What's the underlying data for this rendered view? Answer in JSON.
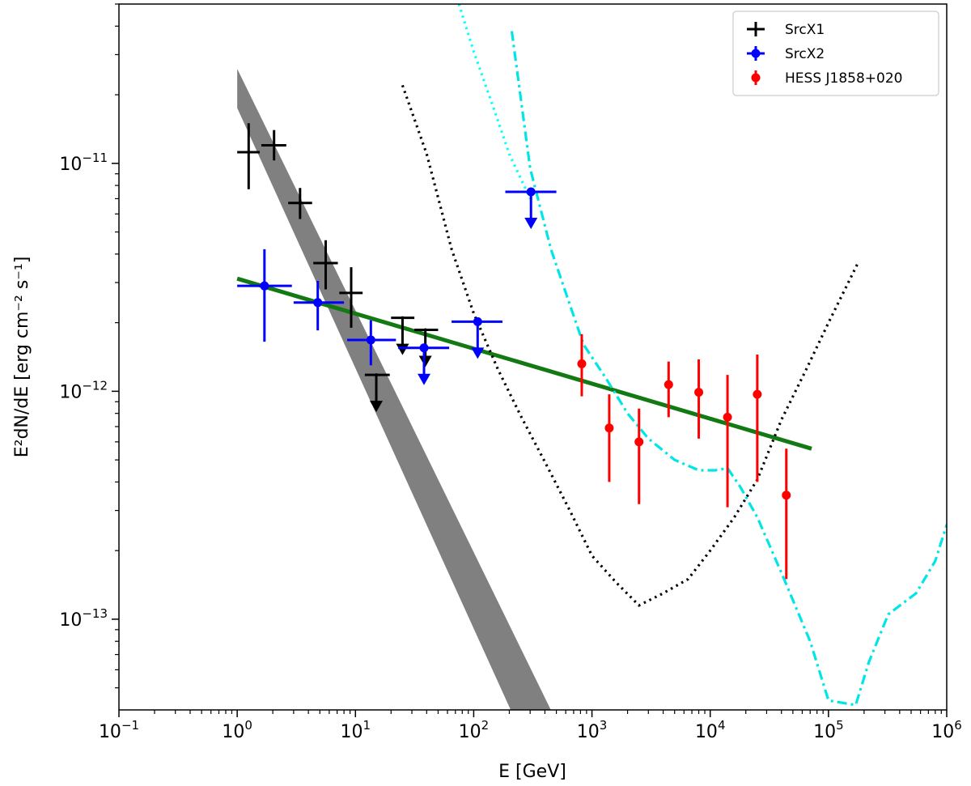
{
  "chart_data": {
    "type": "scatter",
    "title": "",
    "xlabel": "E [GeV]",
    "ylabel": "E²dN/dE [erg cm⁻² s⁻¹]",
    "xscale": "log",
    "yscale": "log",
    "xlim": [
      0.1,
      1000000
    ],
    "ylim": [
      4e-14,
      5e-11
    ],
    "x_ticks": [
      {
        "value": 0.1,
        "base": "10",
        "exp": "−1"
      },
      {
        "value": 1,
        "base": "10",
        "exp": "0"
      },
      {
        "value": 10,
        "base": "10",
        "exp": "1"
      },
      {
        "value": 100,
        "base": "10",
        "exp": "2"
      },
      {
        "value": 1000,
        "base": "10",
        "exp": "3"
      },
      {
        "value": 10000,
        "base": "10",
        "exp": "4"
      },
      {
        "value": 100000,
        "base": "10",
        "exp": "5"
      },
      {
        "value": 1000000,
        "base": "10",
        "exp": "6"
      }
    ],
    "y_ticks": [
      {
        "value": 1e-11,
        "base": "10",
        "exp": "−11"
      },
      {
        "value": 1e-12,
        "base": "10",
        "exp": "−12"
      },
      {
        "value": 1e-13,
        "base": "10",
        "exp": "−13"
      }
    ],
    "legend": {
      "position": "top-right",
      "entries": [
        {
          "label": "SrcX1",
          "color": "#000000",
          "marker": "cross"
        },
        {
          "label": "SrcX2",
          "color": "#0000ff",
          "marker": "circle"
        },
        {
          "label": "HESS J1858+020",
          "color": "#ff0000",
          "marker": "circle"
        }
      ]
    },
    "series": [
      {
        "name": "SrcX1",
        "color": "#000000",
        "marker": "cross",
        "points": [
          {
            "x": 1.25,
            "y": 1.12e-11,
            "xlo": 1.0,
            "xhi": 1.55,
            "ylo": 7.7e-12,
            "yhi": 1.5e-11
          },
          {
            "x": 2.05,
            "y": 1.2e-11,
            "xlo": 1.6,
            "xhi": 2.6,
            "ylo": 1.03e-11,
            "yhi": 1.4e-11
          },
          {
            "x": 3.4,
            "y": 6.7e-12,
            "xlo": 2.7,
            "xhi": 4.3,
            "ylo": 5.7e-12,
            "yhi": 7.8e-12
          },
          {
            "x": 5.6,
            "y": 3.65e-12,
            "xlo": 4.4,
            "xhi": 7.1,
            "ylo": 2.8e-12,
            "yhi": 4.6e-12
          },
          {
            "x": 9.2,
            "y": 2.7e-12,
            "xlo": 7.3,
            "xhi": 11.5,
            "ylo": 1.9e-12,
            "yhi": 3.5e-12
          }
        ],
        "upper_limits": [
          {
            "x": 15,
            "y": 1.18e-12,
            "xlo": 12,
            "xhi": 19.5
          },
          {
            "x": 25,
            "y": 2.1e-12,
            "xlo": 20,
            "xhi": 31.5
          },
          {
            "x": 39,
            "y": 1.86e-12,
            "xlo": 31.5,
            "xhi": 50
          }
        ]
      },
      {
        "name": "SrcX2",
        "color": "#0000ff",
        "marker": "circle",
        "points": [
          {
            "x": 1.7,
            "y": 2.9e-12,
            "xlo": 1.0,
            "xhi": 2.9,
            "ylo": 1.65e-12,
            "yhi": 4.2e-12
          },
          {
            "x": 4.8,
            "y": 2.45e-12,
            "xlo": 3.0,
            "xhi": 8.0,
            "ylo": 1.85e-12,
            "yhi": 3.05e-12
          },
          {
            "x": 13.5,
            "y": 1.68e-12,
            "xlo": 8.5,
            "xhi": 22,
            "ylo": 1.3e-12,
            "yhi": 2.05e-12
          }
        ],
        "upper_limits": [
          {
            "x": 38,
            "y": 1.55e-12,
            "xlo": 23,
            "xhi": 62
          },
          {
            "x": 108,
            "y": 2.02e-12,
            "xlo": 65,
            "xhi": 175
          },
          {
            "x": 305,
            "y": 7.5e-12,
            "xlo": 185,
            "xhi": 500
          }
        ]
      },
      {
        "name": "HESS J1858+020",
        "color": "#ff0000",
        "marker": "circle",
        "points": [
          {
            "x": 820,
            "y": 1.32e-12,
            "ylo": 9.5e-13,
            "yhi": 1.78e-12
          },
          {
            "x": 1400,
            "y": 6.9e-13,
            "ylo": 4e-13,
            "yhi": 9.7e-13
          },
          {
            "x": 2500,
            "y": 6e-13,
            "ylo": 3.2e-13,
            "yhi": 8.4e-13
          },
          {
            "x": 4450,
            "y": 1.07e-12,
            "ylo": 7.7e-13,
            "yhi": 1.35e-12
          },
          {
            "x": 8000,
            "y": 9.9e-13,
            "ylo": 6.2e-13,
            "yhi": 1.38e-12
          },
          {
            "x": 14000,
            "y": 7.7e-13,
            "ylo": 3.1e-13,
            "yhi": 1.18e-12
          },
          {
            "x": 25000,
            "y": 9.7e-13,
            "ylo": 4e-13,
            "yhi": 1.45e-12
          },
          {
            "x": 44000,
            "y": 3.5e-13,
            "ylo": 1.5e-13,
            "yhi": 5.6e-13
          }
        ]
      }
    ],
    "lines": [
      {
        "name": "power-law-fit",
        "color": "#137a13",
        "style": "solid",
        "x": [
          1,
          72000
        ],
        "y": [
          3.12e-12,
          5.6e-13
        ]
      },
      {
        "name": "sensitivity-dotted-black",
        "color": "#000000",
        "style": "dotted",
        "x": [
          25,
          40,
          65,
          100,
          160,
          250,
          400,
          650,
          1000,
          1600,
          2500,
          4000,
          6500,
          10000,
          16000,
          25000,
          40000,
          65000,
          100000,
          175000
        ],
        "y": [
          2.2e-11,
          1.1e-11,
          4.2e-12,
          2.2e-12,
          1.25e-12,
          7.8e-13,
          4.9e-13,
          3e-13,
          1.9e-13,
          1.45e-13,
          1.15e-13,
          1.3e-13,
          1.5e-13,
          2e-13,
          2.8e-13,
          4.1e-13,
          7.5e-13,
          1.25e-12,
          2e-12,
          3.6e-12
        ]
      },
      {
        "name": "sensitivity-dotted-cyan",
        "color": "#00ffff",
        "style": "dotted",
        "x": [
          75,
          100,
          150,
          200,
          300
        ],
        "y": [
          5e-11,
          3.1e-11,
          1.7e-11,
          1.1e-11,
          7e-12
        ]
      },
      {
        "name": "sensitivity-dashdot-cyan",
        "color": "#00e5e5",
        "style": "dashdot",
        "x": [
          210,
          300,
          450,
          650,
          850,
          1300,
          2000,
          3000,
          5000,
          8000,
          11000,
          14000,
          18000,
          25000,
          40000,
          70000,
          100000,
          170000,
          220000,
          320000,
          550000,
          800000,
          1000000
        ],
        "y": [
          3.8e-11,
          9.5e-12,
          4.2e-12,
          2.4e-12,
          1.6e-12,
          1.15e-12,
          8e-13,
          6.2e-13,
          5e-13,
          4.5e-13,
          4.5e-13,
          4.6e-13,
          3.8e-13,
          2.8e-13,
          1.6e-13,
          8e-14,
          4.4e-14,
          4.2e-14,
          6.5e-14,
          1.05e-13,
          1.3e-13,
          1.8e-13,
          2.6e-13
        ]
      }
    ],
    "bands": [
      {
        "name": "srcx1-powerlaw-band",
        "color": "#808080",
        "x_top": [
          1,
          460
        ],
        "y_top": [
          2.6e-11,
          3.9e-14
        ],
        "x_bottom": [
          1,
          210
        ],
        "y_bottom": [
          1.75e-11,
          3.9e-14
        ]
      }
    ]
  }
}
